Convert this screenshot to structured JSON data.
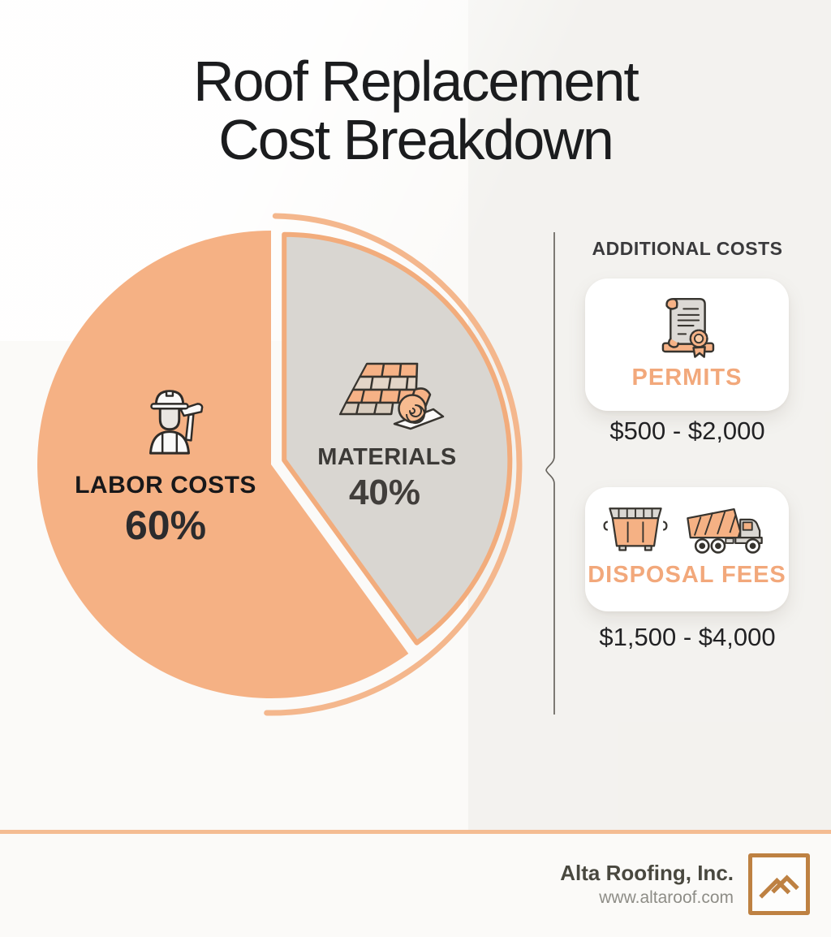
{
  "title": {
    "line1": "Roof Replacement",
    "line2": "Cost Breakdown"
  },
  "chart_data": {
    "type": "pie",
    "title": "Roof Replacement Cost Breakdown",
    "slices": [
      {
        "label": "LABOR COSTS",
        "value": 60,
        "pct_label": "60%",
        "color": "#F5B184",
        "icon": "construction-worker-icon"
      },
      {
        "label": "MATERIALS",
        "value": 40,
        "pct_label": "40%",
        "color": "#D9D6D1",
        "icon": "roof-shingles-roll-icon"
      }
    ],
    "wedge_border_color": "#F2AC7C",
    "outer_arc_color": "#F4B78D",
    "exploded_slice": "MATERIALS",
    "legend_position": "none"
  },
  "additional_costs": {
    "header": "ADDITIONAL COSTS",
    "items": [
      {
        "label": "PERMITS",
        "range": "$500 - $2,000",
        "icon": "permit-scroll-icon"
      },
      {
        "label": "DISPOSAL FEES",
        "range": "$1,500 - $4,000",
        "icon": "dumpster-and-dump-truck-icon"
      }
    ]
  },
  "footer": {
    "company": "Alta Roofing, Inc.",
    "website": "www.altaroof.com"
  },
  "colors": {
    "accent_orange": "#F5B184",
    "accent_text": "#F2A87B",
    "gray_slice": "#D9D6D1",
    "logo_brown": "#BE8142",
    "footer_line": "#F4BC92"
  }
}
